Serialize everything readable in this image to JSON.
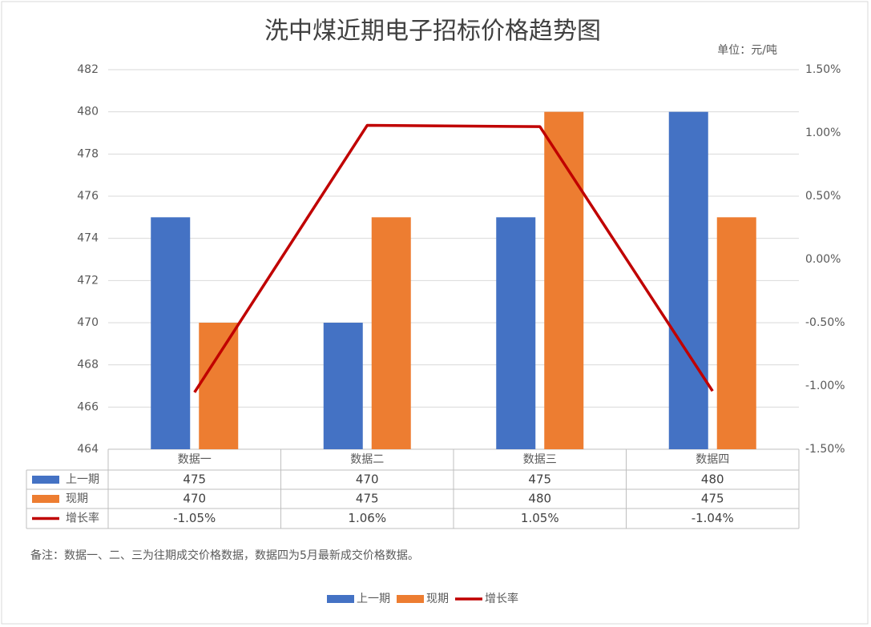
{
  "chart_data": {
    "type": "bar",
    "title": "洗中煤近期电子招标价格趋势图",
    "subtitle": "单位：元/吨",
    "note": "备注：数据一、二、三为往期成交价格数据，数据四为5月最新成交价格数据。",
    "categories": [
      "数据一",
      "数据二",
      "数据三",
      "数据四"
    ],
    "series": [
      {
        "name": "上一期",
        "type": "bar",
        "color": "#4472c4",
        "values": [
          475,
          470,
          475,
          480
        ]
      },
      {
        "name": "现期",
        "type": "bar",
        "color": "#ed7d31",
        "values": [
          470,
          475,
          480,
          475
        ]
      },
      {
        "name": "增长率",
        "type": "line",
        "axis": "y2",
        "color": "#c00000",
        "values": [
          -1.05,
          1.06,
          1.05,
          -1.04
        ],
        "value_labels": [
          "-1.05%",
          "1.06%",
          "1.05%",
          "-1.04%"
        ]
      }
    ],
    "ylim": [
      464,
      482
    ],
    "yticks": [
      464,
      466,
      468,
      470,
      472,
      474,
      476,
      478,
      480,
      482
    ],
    "y2lim": [
      -1.5,
      1.5
    ],
    "y2ticks": [
      {
        "value": -1.5,
        "label": "-1.50%"
      },
      {
        "value": -1.0,
        "label": "-1.00%"
      },
      {
        "value": -0.5,
        "label": "-0.50%"
      },
      {
        "value": 0,
        "label": "0.00%"
      },
      {
        "value": 0.5,
        "label": "0.50%"
      },
      {
        "value": 1.0,
        "label": "1.00%"
      },
      {
        "value": 1.5,
        "label": "1.50%"
      }
    ],
    "grid": true,
    "legend": "bottom"
  }
}
